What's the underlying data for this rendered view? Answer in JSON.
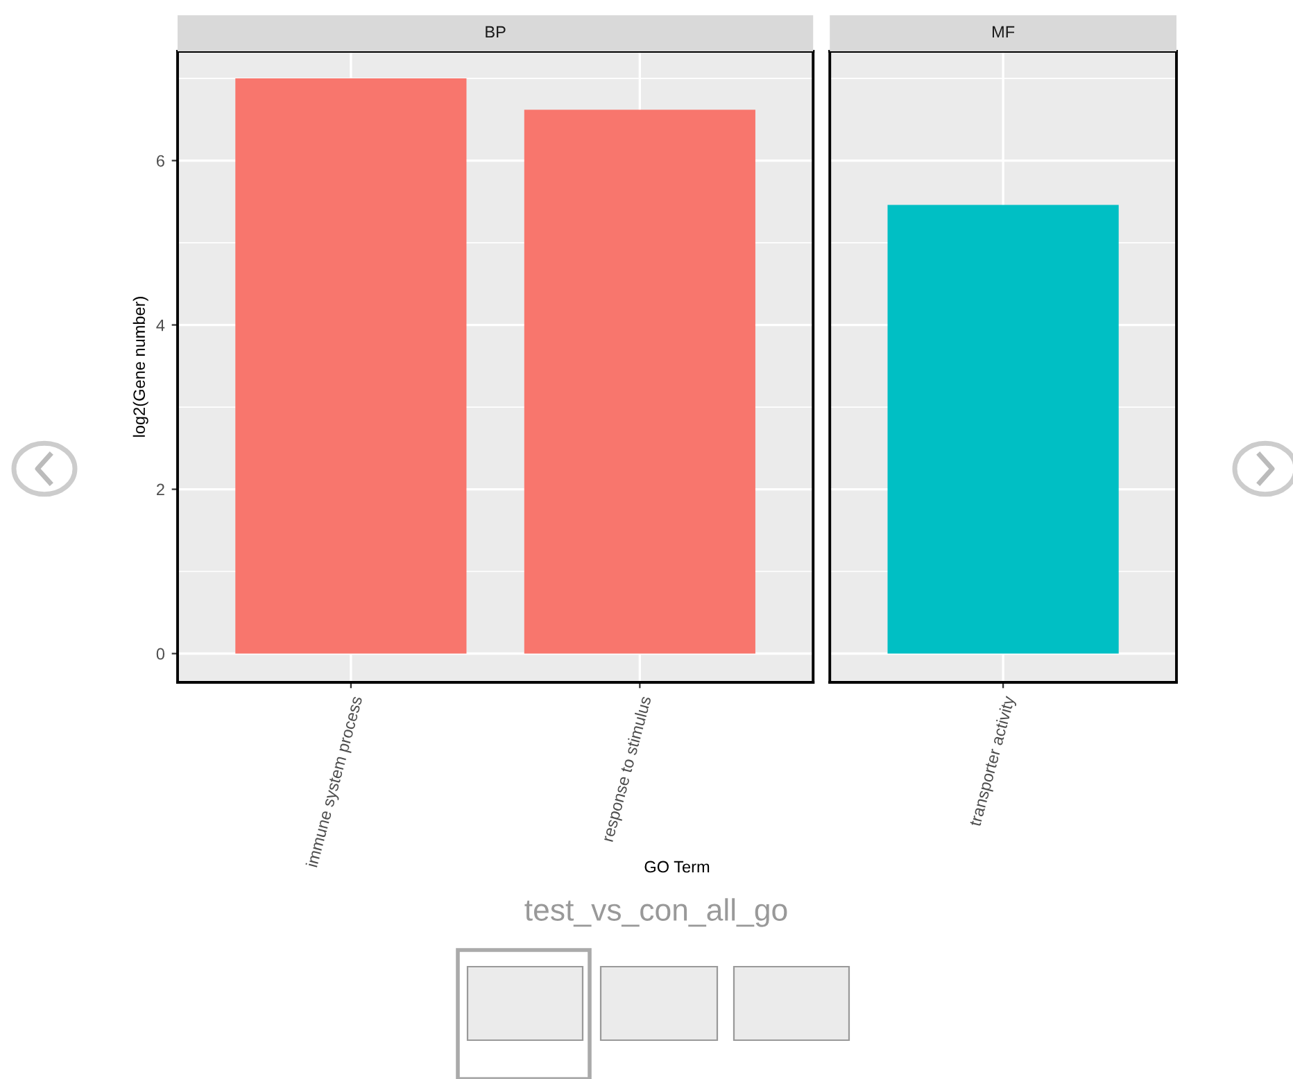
{
  "chart_data": [
    {
      "type": "bar",
      "title": "BP",
      "ylabel": "log2(Gene number)",
      "xlabel": "GO Term",
      "categories": [
        "immune system process",
        "response to stimulus"
      ],
      "values": [
        7.0,
        6.62
      ],
      "color": "#f8766d",
      "ylim": [
        -0.35,
        7.33
      ],
      "yticks": [
        0,
        2,
        4,
        6
      ],
      "grid": true,
      "annotations": [
        "test_vs_con_all_go"
      ]
    },
    {
      "type": "bar",
      "title": "MF",
      "categories": [
        "transporter activity"
      ],
      "values": [
        5.46
      ],
      "color": "#00bfc4",
      "ylim": [
        -0.35,
        7.33
      ],
      "yticks": [
        0,
        2,
        4,
        6
      ],
      "grid": true,
      "tick_labels": "x"
    }
  ]
}
